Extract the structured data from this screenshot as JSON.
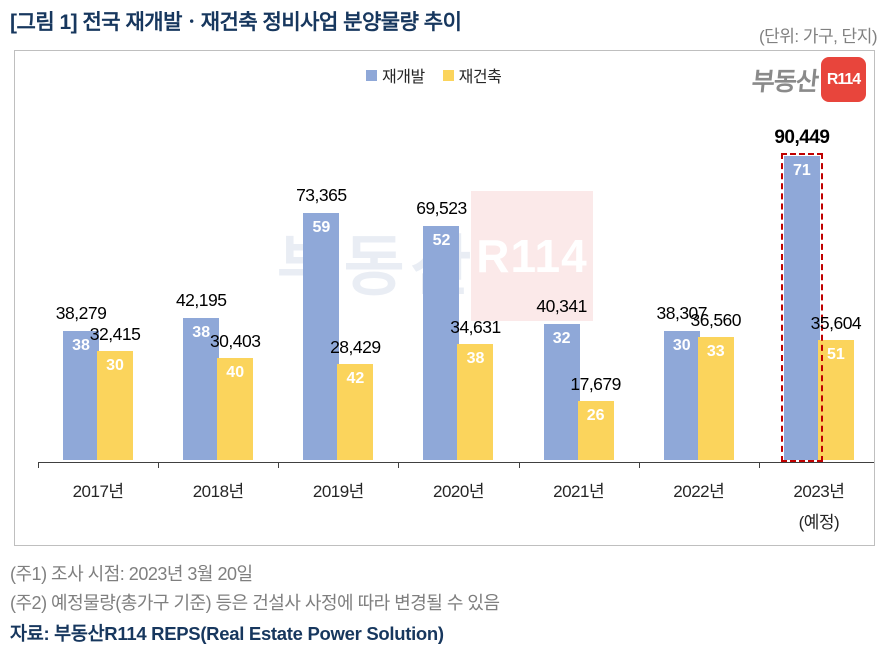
{
  "header": {
    "title": "[그림 1] 전국 재개발ㆍ재건축 정비사업 분양물량 추이",
    "unit_label": "(단위: 가구, 단지)"
  },
  "logo": {
    "prefix": "부동산",
    "badge": "R114"
  },
  "watermark": {
    "prefix": "부동산",
    "badge": "R114"
  },
  "legend": [
    {
      "label": "재개발",
      "color": "#8FA8D8"
    },
    {
      "label": "재건축",
      "color": "#FBD45C"
    }
  ],
  "chart_data": {
    "type": "bar",
    "title": "전국 재개발ㆍ재건축 정비사업 분양물량 추이",
    "unit": "가구, 단지",
    "categories": [
      "2017년",
      "2018년",
      "2019년",
      "2020년",
      "2021년",
      "2022년",
      "2023년"
    ],
    "last_category_note": "(예정)",
    "series": [
      {
        "name": "재개발",
        "color": "#8FA8D8",
        "values": [
          38279,
          42195,
          73365,
          69523,
          40341,
          38307,
          90449
        ],
        "complex_counts": [
          38,
          38,
          59,
          52,
          32,
          30,
          71
        ]
      },
      {
        "name": "재건축",
        "color": "#FBD45C",
        "values": [
          32415,
          30403,
          28429,
          34631,
          17679,
          36560,
          35604
        ],
        "complex_counts": [
          30,
          40,
          42,
          38,
          26,
          33,
          51
        ]
      }
    ],
    "highlight": {
      "series": "재개발",
      "category": "2023년",
      "border_color": "#C00000",
      "style": "dashed"
    },
    "ylim": [
      0,
      100000
    ],
    "grid": false,
    "legend_position": "top"
  },
  "footnotes": [
    "(주1) 조사 시점: 2023년 3월 20일",
    "(주2) 예정물량(총가구 기준) 등은 건설사 사정에 따라 변경될 수 있음"
  ],
  "source": "자료: 부동산R114 REPS(Real Estate Power Solution)"
}
